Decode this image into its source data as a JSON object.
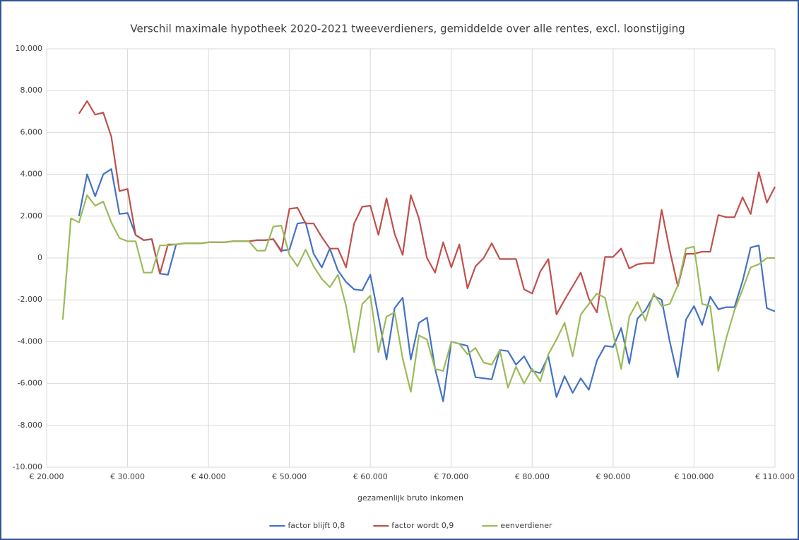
{
  "chart_data": {
    "type": "line",
    "title": "Verschil maximale hypotheek 2020-2021 tweeverdieners, gemiddelde over alle rentes, excl. loonstijging",
    "x_label": "gezamenlijk bruto inkomen",
    "x": [
      22000,
      23000,
      24000,
      25000,
      26000,
      27000,
      28000,
      29000,
      30000,
      31000,
      32000,
      33000,
      34000,
      35000,
      36000,
      37000,
      38000,
      39000,
      40000,
      41000,
      42000,
      43000,
      44000,
      45000,
      46000,
      47000,
      48000,
      49000,
      50000,
      51000,
      52000,
      53000,
      54000,
      55000,
      56000,
      57000,
      58000,
      59000,
      60000,
      61000,
      62000,
      63000,
      64000,
      65000,
      66000,
      67000,
      68000,
      69000,
      70000,
      71000,
      72000,
      73000,
      74000,
      75000,
      76000,
      77000,
      78000,
      79000,
      80000,
      81000,
      82000,
      83000,
      84000,
      85000,
      86000,
      87000,
      88000,
      89000,
      90000,
      91000,
      92000,
      93000,
      94000,
      95000,
      96000,
      97000,
      98000,
      99000,
      100000,
      101000,
      102000,
      103000,
      104000,
      105000,
      106000,
      107000,
      108000,
      109000,
      110000
    ],
    "series": [
      {
        "name": "factor blijft 0,8",
        "color": "#4472c4",
        "values": [
          null,
          null,
          2000,
          4000,
          2950,
          4000,
          4250,
          2100,
          2150,
          1100,
          850,
          900,
          -750,
          -800,
          650,
          700,
          700,
          700,
          750,
          750,
          750,
          800,
          800,
          800,
          850,
          850,
          900,
          350,
          400,
          1650,
          1700,
          200,
          -450,
          450,
          -600,
          -1150,
          -1500,
          -1550,
          -800,
          -2800,
          -4850,
          -2400,
          -1900,
          -4850,
          -3100,
          -2850,
          -5300,
          -6850,
          -4000,
          -4100,
          -4200,
          -5700,
          -5750,
          -5800,
          -4400,
          -4450,
          -5100,
          -4700,
          -5400,
          -5500,
          -4700,
          -6650,
          -5650,
          -6450,
          -5750,
          -6300,
          -4900,
          -4200,
          -4250,
          -3350,
          -5050,
          -2900,
          -2500,
          -1800,
          -2000,
          -4000,
          -5700,
          -2950,
          -2300,
          -3200,
          -1850,
          -2450,
          -2350,
          -2350,
          -1100,
          500,
          600,
          -2400,
          -2550
        ]
      },
      {
        "name": "factor wordt 0,9",
        "color": "#c0504d",
        "values": [
          null,
          null,
          6900,
          7500,
          6850,
          6950,
          5800,
          3200,
          3300,
          1100,
          850,
          900,
          -750,
          650,
          650,
          700,
          700,
          700,
          750,
          750,
          750,
          800,
          800,
          800,
          850,
          850,
          900,
          300,
          2350,
          2400,
          1650,
          1650,
          1000,
          450,
          450,
          -450,
          1650,
          2450,
          2500,
          1100,
          2850,
          1150,
          150,
          3000,
          1900,
          0,
          -700,
          750,
          -450,
          650,
          -1450,
          -400,
          0,
          700,
          -50,
          -50,
          -50,
          -1500,
          -1700,
          -650,
          -50,
          -2700,
          -2000,
          -1350,
          -700,
          -1950,
          -2600,
          50,
          50,
          450,
          -500,
          -300,
          -250,
          -250,
          2300,
          350,
          -1350,
          200,
          200,
          300,
          300,
          2050,
          1950,
          1950,
          2900,
          2100,
          4100,
          2650,
          3400
        ]
      },
      {
        "name": "eenverdiener",
        "color": "#9bbb59",
        "values": [
          -2950,
          1900,
          1700,
          3000,
          2500,
          2700,
          1700,
          950,
          800,
          800,
          -700,
          -700,
          600,
          600,
          650,
          700,
          700,
          700,
          750,
          750,
          750,
          800,
          800,
          800,
          350,
          350,
          1500,
          1550,
          150,
          -400,
          400,
          -400,
          -1000,
          -1400,
          -800,
          -2300,
          -4500,
          -2200,
          -1800,
          -4500,
          -2800,
          -2600,
          -4800,
          -6400,
          -3700,
          -3900,
          -5300,
          -5400,
          -4000,
          -4100,
          -4600,
          -4300,
          -5000,
          -5100,
          -4400,
          -6200,
          -5200,
          -6000,
          -5300,
          -5900,
          -4600,
          -3900,
          -3100,
          -4700,
          -2700,
          -2200,
          -1700,
          -1900,
          -3600,
          -5300,
          -2800,
          -2100,
          -3000,
          -1700,
          -2300,
          -2200,
          -1300,
          450,
          550,
          -2200,
          -2300,
          -5400,
          -3800,
          -2500,
          -1500,
          -450,
          -300,
          0,
          0
        ]
      }
    ],
    "xlim": [
      20000,
      110000
    ],
    "xticks": [
      {
        "value": 20000,
        "label": "€ 20.000"
      },
      {
        "value": 30000,
        "label": "€ 30.000"
      },
      {
        "value": 40000,
        "label": "€ 40.000"
      },
      {
        "value": 50000,
        "label": "€ 50.000"
      },
      {
        "value": 60000,
        "label": "€ 60.000"
      },
      {
        "value": 70000,
        "label": "€ 70.000"
      },
      {
        "value": 80000,
        "label": "€ 80.000"
      },
      {
        "value": 90000,
        "label": "€ 90.000"
      },
      {
        "value": 100000,
        "label": "€ 100.000"
      },
      {
        "value": 110000,
        "label": "€ 110.000"
      }
    ],
    "ylim": [
      -10000,
      10000
    ],
    "yticks": [
      {
        "value": -10000,
        "label": "-10.000"
      },
      {
        "value": -8000,
        "label": "-8.000"
      },
      {
        "value": -6000,
        "label": "-6.000"
      },
      {
        "value": -4000,
        "label": "-4.000"
      },
      {
        "value": -2000,
        "label": "-2.000"
      },
      0,
      {
        "value": 2000,
        "label": "2.000"
      },
      {
        "value": 4000,
        "label": "4.000"
      },
      {
        "value": 6000,
        "label": "6.000"
      },
      {
        "value": 8000,
        "label": "8.000"
      },
      {
        "value": 10000,
        "label": "10.000"
      }
    ],
    "grid": true,
    "legend": "bottom"
  }
}
